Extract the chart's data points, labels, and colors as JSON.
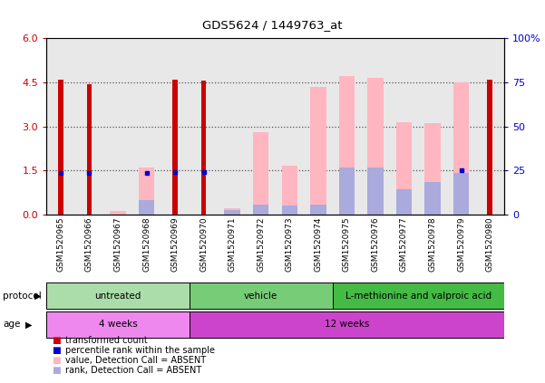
{
  "title": "GDS5624 / 1449763_at",
  "samples": [
    "GSM1520965",
    "GSM1520966",
    "GSM1520967",
    "GSM1520968",
    "GSM1520969",
    "GSM1520970",
    "GSM1520971",
    "GSM1520972",
    "GSM1520973",
    "GSM1520974",
    "GSM1520975",
    "GSM1520976",
    "GSM1520977",
    "GSM1520978",
    "GSM1520979",
    "GSM1520980"
  ],
  "transformed_count": [
    4.6,
    4.45,
    0,
    0,
    4.6,
    4.55,
    0,
    0,
    0,
    0,
    0,
    0,
    0,
    0,
    0,
    4.6
  ],
  "percentile_rank": [
    1.4,
    1.4,
    0,
    1.4,
    1.45,
    1.45,
    0,
    0,
    0,
    0,
    0,
    0,
    0,
    0,
    1.5,
    0
  ],
  "absent_value": [
    0,
    0,
    0.12,
    1.6,
    0,
    0,
    0.2,
    2.8,
    1.65,
    4.35,
    4.7,
    4.65,
    3.15,
    3.1,
    4.5,
    0
  ],
  "absent_rank": [
    0,
    0,
    0,
    0.5,
    0,
    0,
    0.15,
    0.35,
    0.3,
    0.35,
    1.6,
    1.6,
    0.85,
    1.1,
    1.4,
    0
  ],
  "ylim_left": [
    0,
    6
  ],
  "ylim_right": [
    0,
    100
  ],
  "yticks_left": [
    0,
    1.5,
    3.0,
    4.5,
    6
  ],
  "yticks_right": [
    0,
    25,
    50,
    75,
    100
  ],
  "protocol_groups": [
    {
      "label": "untreated",
      "start": 0,
      "end": 4,
      "color": "#aaddaa"
    },
    {
      "label": "vehicle",
      "start": 5,
      "end": 9,
      "color": "#77cc77"
    },
    {
      "label": "L-methionine and valproic acid",
      "start": 10,
      "end": 15,
      "color": "#44bb44"
    }
  ],
  "age_groups": [
    {
      "label": "4 weeks",
      "start": 0,
      "end": 4,
      "color": "#ee88ee"
    },
    {
      "label": "12 weeks",
      "start": 5,
      "end": 15,
      "color": "#cc44cc"
    }
  ],
  "transformed_color": "#cc0000",
  "percentile_color": "#0000cc",
  "absent_value_color": "#ffb6c1",
  "absent_rank_color": "#aaaadd",
  "grid_color": "#555555",
  "axis_color_left": "#cc0000",
  "axis_color_right": "#0000cc",
  "plot_bg": "#e8e8e8",
  "label_color": "black",
  "legend_items": [
    {
      "color": "#cc0000",
      "label": "transformed count"
    },
    {
      "color": "#0000cc",
      "label": "percentile rank within the sample"
    },
    {
      "color": "#ffb6c1",
      "label": "value, Detection Call = ABSENT"
    },
    {
      "color": "#aaaadd",
      "label": "rank, Detection Call = ABSENT"
    }
  ]
}
